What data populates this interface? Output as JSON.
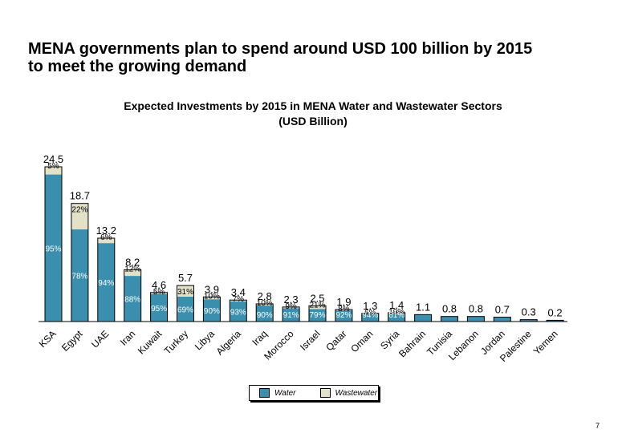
{
  "page": {
    "title_line1": "MENA governments plan to spend around USD 100 billion by 2015",
    "title_line2": "to meet the growing demand",
    "page_number": "7"
  },
  "chart_data": {
    "type": "bar",
    "stacked": true,
    "title": "Expected Investments by 2015 in MENA Water and Wastewater Sectors",
    "subtitle": "(USD Billion)",
    "xlabel": "",
    "ylabel": "",
    "ylim": [
      0,
      25
    ],
    "grid": false,
    "legend_position": "bottom-center",
    "colors": {
      "Water": "#3a8fae",
      "Wastewater": "#e3e1c8"
    },
    "categories": [
      "KSA",
      "Egypt",
      "UAE",
      "Iran",
      "Kuwait",
      "Turkey",
      "Libya",
      "Algeria",
      "Iraq",
      "Morocco",
      "Israel",
      "Qatar",
      "Oman",
      "Syria",
      "Bahrain",
      "Tunisia",
      "Lebanon",
      "Jordan",
      "Palestine",
      "Yemen"
    ],
    "totals": [
      24.5,
      18.7,
      13.2,
      8.2,
      4.6,
      5.7,
      3.9,
      3.4,
      2.8,
      2.3,
      2.5,
      1.9,
      1.3,
      1.4,
      1.1,
      0.8,
      0.8,
      0.7,
      0.3,
      0.2
    ],
    "total_labels": [
      "24.5",
      "18.7",
      "13.2",
      "8.2",
      "4.6",
      "5.7",
      "3.9",
      "3.4",
      "2.8",
      "2.3",
      "2.5",
      "1.9",
      "1.3",
      "1.4",
      "1.1",
      "0.8",
      "0.8",
      "0.7",
      "0.3",
      "0.2"
    ],
    "water_share_labels": [
      "95%",
      "78%",
      "94%",
      "88%",
      "95%",
      "69%",
      "90%",
      "93%",
      "90%",
      "91%",
      "79%",
      "92%",
      "94%",
      "81%",
      "",
      "",
      "",
      "",
      "",
      ""
    ],
    "wastewater_share_labels": [
      "5%",
      "22%",
      "6%",
      "12%",
      "5%",
      "31%",
      "10%",
      "7%",
      "10%",
      "9%",
      "21%",
      "8%",
      "6%",
      "19%",
      "",
      "",
      "",
      "",
      "",
      ""
    ],
    "series": [
      {
        "name": "Water",
        "share_pct": [
          95,
          78,
          94,
          88,
          95,
          69,
          90,
          93,
          90,
          91,
          79,
          92,
          94,
          81,
          100,
          100,
          100,
          100,
          100,
          100
        ]
      },
      {
        "name": "Wastewater",
        "share_pct": [
          5,
          22,
          6,
          12,
          5,
          31,
          10,
          7,
          10,
          9,
          21,
          8,
          6,
          19,
          0,
          0,
          0,
          0,
          0,
          0
        ]
      }
    ],
    "legend": [
      "Water",
      "Wastewater"
    ]
  }
}
